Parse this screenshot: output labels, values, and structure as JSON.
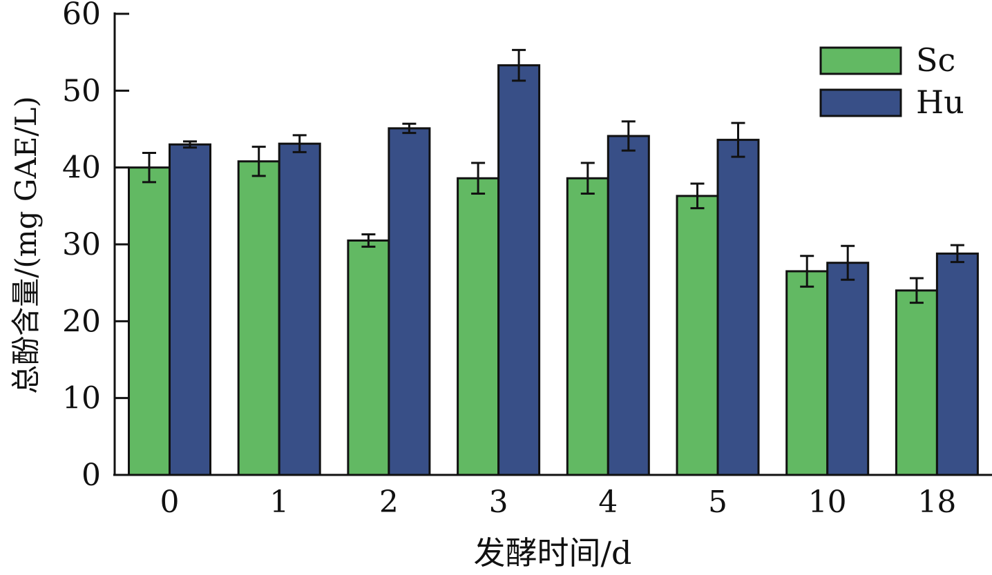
{
  "chart_data": {
    "type": "bar",
    "title": "",
    "xlabel": "发酵时间/d",
    "ylabel": "总酚含量/(mg GAE/L)",
    "categories": [
      "0",
      "1",
      "2",
      "3",
      "4",
      "5",
      "10",
      "18"
    ],
    "ylim": [
      0,
      60
    ],
    "yticks": [
      0,
      10,
      20,
      30,
      40,
      50,
      60
    ],
    "grid": false,
    "legend_position": "top-right",
    "series": [
      {
        "name": "Sc",
        "color": "#62b963",
        "values": [
          40.0,
          40.8,
          30.5,
          38.6,
          38.6,
          36.3,
          26.5,
          24.0
        ],
        "errors": [
          1.9,
          1.9,
          0.8,
          2.0,
          2.0,
          1.6,
          2.0,
          1.6
        ]
      },
      {
        "name": "Hu",
        "color": "#384f87",
        "values": [
          43.0,
          43.1,
          45.1,
          53.3,
          44.1,
          43.6,
          27.6,
          28.8
        ],
        "errors": [
          0.4,
          1.1,
          0.6,
          2.0,
          1.9,
          2.2,
          2.2,
          1.1
        ]
      }
    ]
  }
}
